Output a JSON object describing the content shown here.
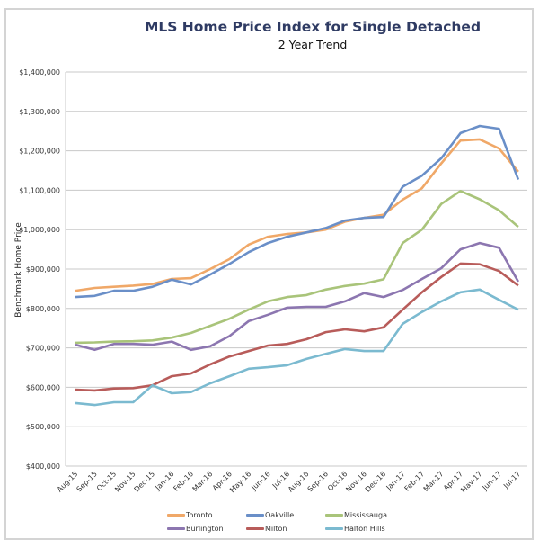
{
  "chart_data": {
    "type": "line",
    "title": "MLS Home Price Index for Single Detached",
    "subtitle": "2 Year Trend",
    "xlabel": "",
    "ylabel": "Benchmark Home Price",
    "ylim": [
      400000,
      1400000
    ],
    "yticks": [
      400000,
      500000,
      600000,
      700000,
      800000,
      900000,
      1000000,
      1100000,
      1200000,
      1300000,
      1400000
    ],
    "ytick_labels": [
      "$400,000",
      "$500,000",
      "$600,000",
      "$700,000",
      "$800,000",
      "$900,000",
      "$1,000,000",
      "$1,100,000",
      "$1,200,000",
      "$1,300,000",
      "$1,400,000"
    ],
    "grid": "horizontal",
    "legend_position": "bottom",
    "categories": [
      "Aug-15",
      "Sep-15",
      "Oct-15",
      "Nov-15",
      "Dec-15",
      "Jan-16",
      "Feb-16",
      "Mar-16",
      "Apr-16",
      "May-16",
      "Jun-16",
      "Jul-16",
      "Aug-16",
      "Sep-16",
      "Oct-16",
      "Nov-16",
      "Dec-16",
      "Jan-17",
      "Feb-17",
      "Mar-17",
      "Apr-17",
      "May-17",
      "Jun-17",
      "Jul-17"
    ],
    "series": [
      {
        "name": "Toronto",
        "color": "#f0a868",
        "values": [
          845000,
          852000,
          855000,
          858000,
          862000,
          875000,
          877000,
          900000,
          925000,
          962000,
          982000,
          989000,
          993000,
          1000000,
          1020000,
          1030000,
          1038000,
          1076000,
          1105000,
          1168000,
          1226000,
          1229000,
          1206000,
          1147000
        ]
      },
      {
        "name": "Oakville",
        "color": "#6a8fc8",
        "values": [
          829000,
          832000,
          845000,
          845000,
          855000,
          873000,
          861000,
          886000,
          913000,
          943000,
          966000,
          982000,
          993000,
          1004000,
          1023000,
          1030000,
          1032000,
          1109000,
          1137000,
          1181000,
          1245000,
          1263000,
          1256000,
          1127000
        ]
      },
      {
        "name": "Mississauga",
        "color": "#a9c47a",
        "values": [
          713000,
          714000,
          716000,
          717000,
          719000,
          726000,
          738000,
          756000,
          774000,
          797000,
          818000,
          829000,
          834000,
          848000,
          857000,
          863000,
          874000,
          966000,
          1000000,
          1065000,
          1098000,
          1077000,
          1049000,
          1007000
        ]
      },
      {
        "name": "Burlington",
        "color": "#8c76b0",
        "values": [
          708000,
          695000,
          710000,
          710000,
          708000,
          716000,
          695000,
          704000,
          730000,
          768000,
          784000,
          802000,
          804000,
          804000,
          818000,
          839000,
          829000,
          847000,
          875000,
          902000,
          950000,
          966000,
          954000,
          868000
        ]
      },
      {
        "name": "Milton",
        "color": "#b85c5a",
        "values": [
          594000,
          592000,
          597000,
          598000,
          605000,
          628000,
          635000,
          658000,
          678000,
          692000,
          706000,
          710000,
          722000,
          740000,
          747000,
          742000,
          752000,
          797000,
          841000,
          880000,
          914000,
          912000,
          895000,
          858000
        ]
      },
      {
        "name": "Halton Hills",
        "color": "#7bbad0",
        "values": [
          560000,
          555000,
          562000,
          562000,
          605000,
          585000,
          588000,
          610000,
          628000,
          647000,
          651000,
          656000,
          672000,
          685000,
          697000,
          692000,
          692000,
          761000,
          791000,
          818000,
          841000,
          848000,
          822000,
          797000
        ]
      }
    ]
  }
}
